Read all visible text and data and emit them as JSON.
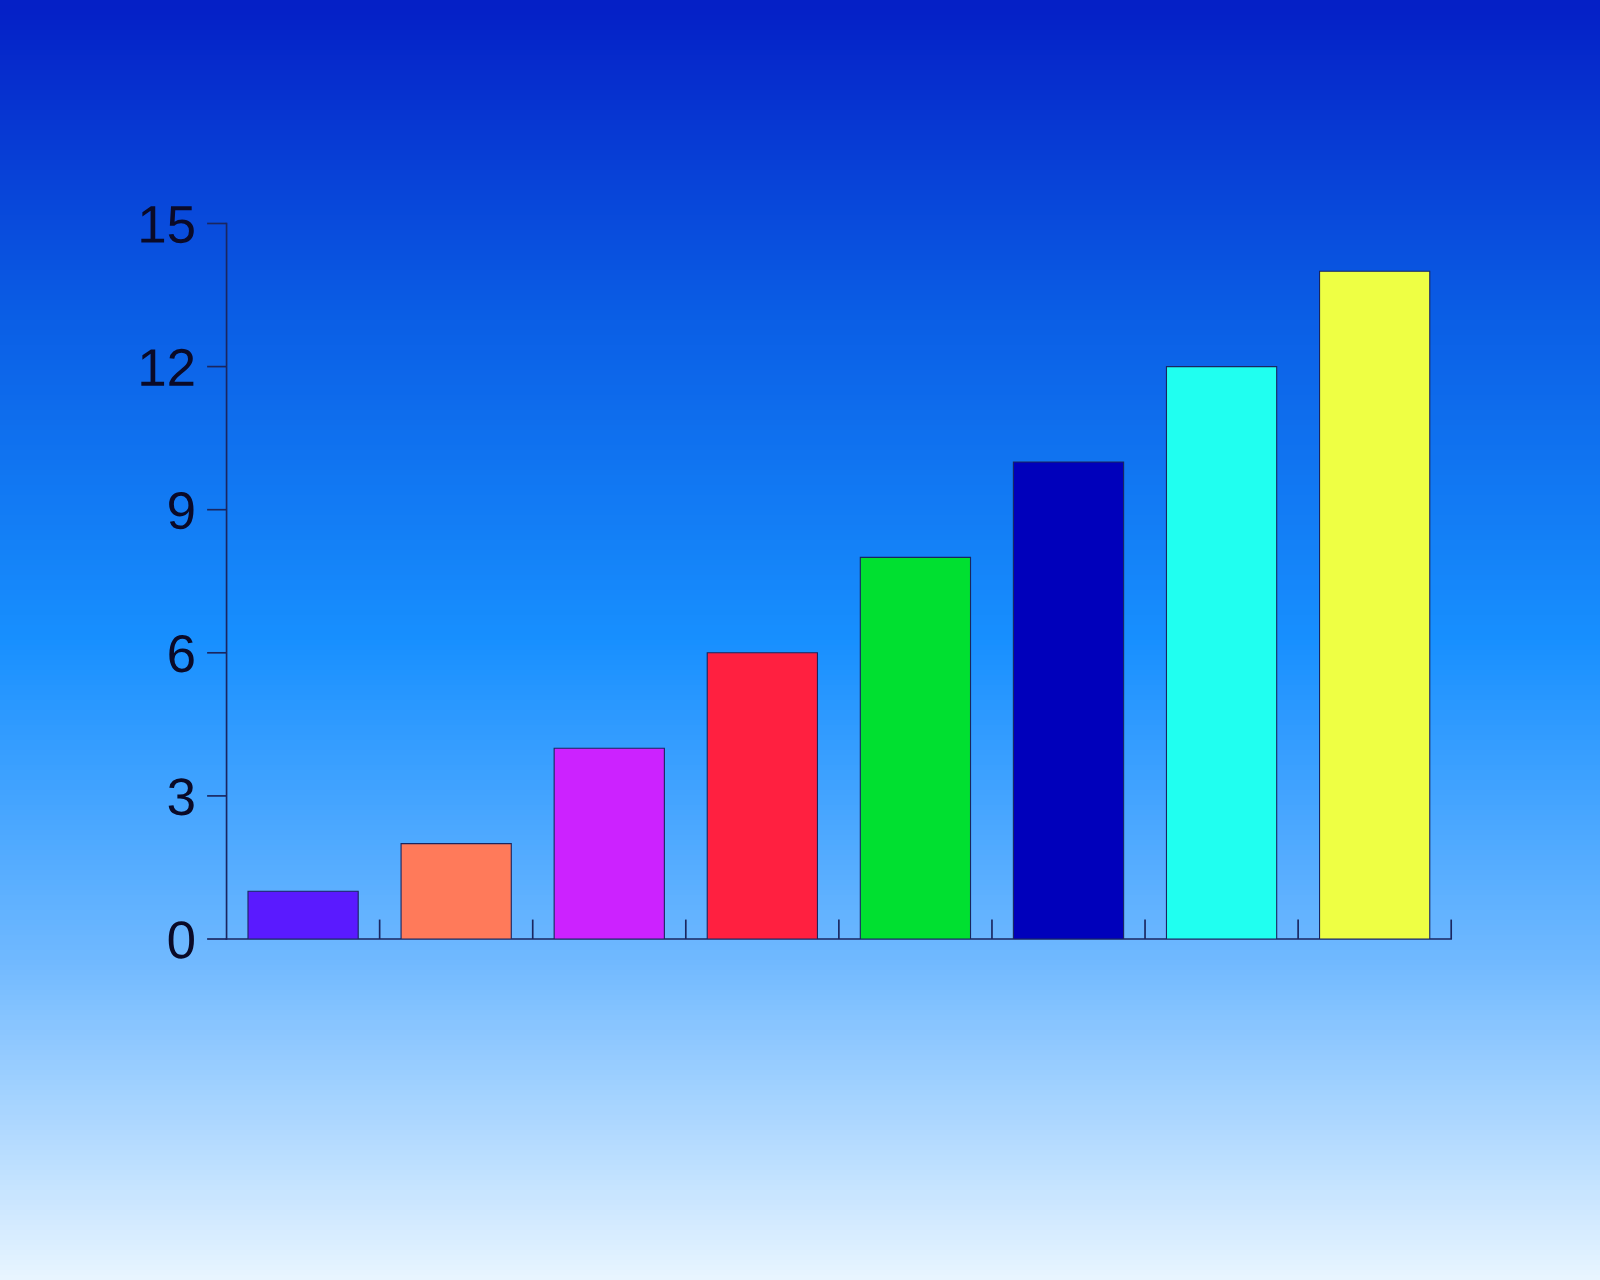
{
  "chart_data": {
    "type": "bar",
    "categories": [
      null,
      null,
      null,
      null,
      null,
      null,
      null,
      null
    ],
    "values": [
      1,
      2,
      4,
      6,
      8,
      10,
      12,
      14
    ],
    "colors": [
      "#5a1aff",
      "#ff7a5a",
      "#cc22ff",
      "#ff2040",
      "#00e030",
      "#0000bb",
      "#20fff0",
      "#eeff44"
    ],
    "ylim": [
      0,
      15
    ],
    "yticks": [
      0,
      3,
      6,
      9,
      12,
      15
    ]
  }
}
